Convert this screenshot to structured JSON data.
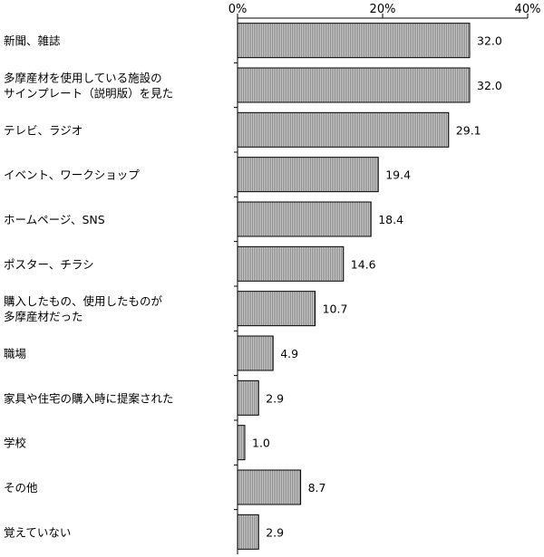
{
  "chart_data": {
    "type": "bar",
    "orientation": "horizontal",
    "title": "",
    "xlabel": "",
    "ylabel": "",
    "xlim": [
      0,
      40
    ],
    "x_ticks": [
      "0%",
      "20%",
      "40%"
    ],
    "x_tick_values": [
      0,
      20,
      40
    ],
    "grid": false,
    "bar_color": "#b4b4b4",
    "categories": [
      [
        "新聞、雑誌"
      ],
      [
        "多摩産材を使用している施設の",
        "サインプレート（説明版）を見た"
      ],
      [
        "テレビ、ラジオ"
      ],
      [
        "イベント、ワークショップ"
      ],
      [
        "ホームページ、SNS"
      ],
      [
        "ポスター、チラシ"
      ],
      [
        "購入したもの、使用したものが",
        "多摩産材だった"
      ],
      [
        "職場"
      ],
      [
        "家具や住宅の購入時に提案された"
      ],
      [
        "学校"
      ],
      [
        "その他"
      ],
      [
        "覚えていない"
      ]
    ],
    "values": [
      32.0,
      32.0,
      29.1,
      19.4,
      18.4,
      14.6,
      10.7,
      4.9,
      2.9,
      1.0,
      8.7,
      2.9
    ],
    "value_labels": [
      "32.0",
      "32.0",
      "29.1",
      "19.4",
      "18.4",
      "14.6",
      "10.7",
      "4.9",
      "2.9",
      "1.0",
      "8.7",
      "2.9"
    ]
  }
}
